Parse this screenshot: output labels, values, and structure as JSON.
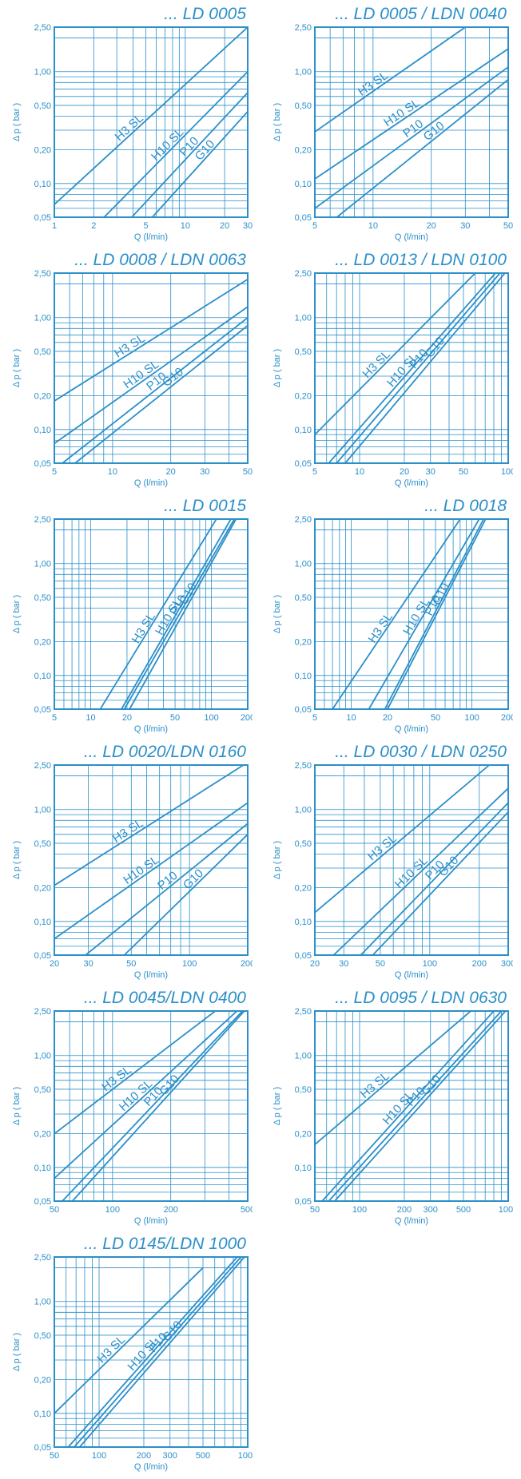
{
  "theme": {
    "color": "#2b8fc9"
  },
  "chart_data": [
    {
      "type": "line",
      "title": "... LD 0005",
      "xlabel": "Q (l/min)",
      "ylabel": "Δ p ( bar )",
      "x_scale": "log",
      "y_scale": "log",
      "xlim": [
        1,
        30
      ],
      "ylim": [
        0.05,
        2.5
      ],
      "x_ticks": [
        "1",
        "2",
        "5",
        "10",
        "20",
        "30"
      ],
      "x_tick_values": [
        1,
        2,
        5,
        10,
        20,
        30
      ],
      "y_ticks": [
        "0,05",
        "0,10",
        "0,20",
        "0,50",
        "1,00",
        "2,50"
      ],
      "y_tick_values": [
        0.05,
        0.1,
        0.2,
        0.5,
        1.0,
        2.5
      ],
      "series": [
        {
          "name": "H3 SL",
          "x": [
            1,
            30
          ],
          "y": [
            0.065,
            2.5
          ]
        },
        {
          "name": "H10 SL",
          "x": [
            2.4,
            30
          ],
          "y": [
            0.05,
            1.0
          ]
        },
        {
          "name": "P10",
          "x": [
            3.9,
            30
          ],
          "y": [
            0.05,
            0.65
          ]
        },
        {
          "name": "G10",
          "x": [
            5.6,
            30
          ],
          "y": [
            0.05,
            0.44
          ]
        }
      ]
    },
    {
      "type": "line",
      "title": "... LD 0005 / LDN 0040",
      "xlabel": "Q (l/min)",
      "ylabel": "Δ p ( bar )",
      "x_scale": "log",
      "y_scale": "log",
      "xlim": [
        5,
        50
      ],
      "ylim": [
        0.05,
        2.5
      ],
      "x_ticks": [
        "5",
        "10",
        "20",
        "30",
        "50"
      ],
      "x_tick_values": [
        5,
        10,
        20,
        30,
        50
      ],
      "y_ticks": [
        "0,05",
        "0,10",
        "0,20",
        "0,50",
        "1,00",
        "2,50"
      ],
      "y_tick_values": [
        0.05,
        0.1,
        0.2,
        0.5,
        1.0,
        2.5
      ],
      "series": [
        {
          "name": "H3 SL",
          "x": [
            5,
            30
          ],
          "y": [
            0.29,
            2.5
          ]
        },
        {
          "name": "H10 SL",
          "x": [
            5,
            50
          ],
          "y": [
            0.11,
            1.6
          ]
        },
        {
          "name": "P10",
          "x": [
            5,
            50
          ],
          "y": [
            0.06,
            1.1
          ]
        },
        {
          "name": "G10",
          "x": [
            6.5,
            50
          ],
          "y": [
            0.05,
            0.85
          ]
        }
      ]
    },
    {
      "type": "line",
      "title": "... LD 0008 / LDN 0063",
      "xlabel": "Q (l/min)",
      "ylabel": "Δ p ( bar )",
      "x_scale": "log",
      "y_scale": "log",
      "xlim": [
        5,
        50
      ],
      "ylim": [
        0.05,
        2.5
      ],
      "x_ticks": [
        "5",
        "10",
        "20",
        "30",
        "50"
      ],
      "x_tick_values": [
        5,
        10,
        20,
        30,
        50
      ],
      "y_ticks": [
        "0,05",
        "0,10",
        "0,20",
        "0,50",
        "1,00",
        "2,50"
      ],
      "y_tick_values": [
        0.05,
        0.1,
        0.2,
        0.5,
        1.0,
        2.5
      ],
      "series": [
        {
          "name": "H3 SL",
          "x": [
            5,
            50
          ],
          "y": [
            0.18,
            2.2
          ]
        },
        {
          "name": "H10 SL",
          "x": [
            5,
            50
          ],
          "y": [
            0.075,
            1.25
          ]
        },
        {
          "name": "P10",
          "x": [
            5.5,
            50
          ],
          "y": [
            0.05,
            1.0
          ]
        },
        {
          "name": "G10",
          "x": [
            6.4,
            50
          ],
          "y": [
            0.05,
            0.85
          ]
        }
      ]
    },
    {
      "type": "line",
      "title": "... LD 0013 / LDN 0100",
      "xlabel": "Q (l/min)",
      "ylabel": "Δ p ( bar )",
      "x_scale": "log",
      "y_scale": "log",
      "xlim": [
        5,
        100
      ],
      "ylim": [
        0.05,
        2.5
      ],
      "x_ticks": [
        "5",
        "10",
        "20",
        "30",
        "50",
        "100"
      ],
      "x_tick_values": [
        5,
        10,
        20,
        30,
        50,
        100
      ],
      "y_ticks": [
        "0,05",
        "0,10",
        "0,20",
        "0,50",
        "1,00",
        "2,50"
      ],
      "y_tick_values": [
        0.05,
        0.1,
        0.2,
        0.5,
        1.0,
        2.5
      ],
      "series": [
        {
          "name": "H3 SL",
          "x": [
            5,
            60
          ],
          "y": [
            0.09,
            2.5
          ]
        },
        {
          "name": "H10 SL",
          "x": [
            6.2,
            82
          ],
          "y": [
            0.05,
            2.5
          ]
        },
        {
          "name": "P10",
          "x": [
            7,
            88
          ],
          "y": [
            0.05,
            2.5
          ]
        },
        {
          "name": "G10",
          "x": [
            8,
            95
          ],
          "y": [
            0.05,
            2.5
          ]
        }
      ]
    },
    {
      "type": "line",
      "title": "... LD 0015",
      "xlabel": "Q (l/min)",
      "ylabel": "Δ p ( bar )",
      "x_scale": "log",
      "y_scale": "log",
      "xlim": [
        5,
        200
      ],
      "ylim": [
        0.05,
        2.5
      ],
      "x_ticks": [
        "5",
        "10",
        "20",
        "50",
        "100",
        "200"
      ],
      "x_tick_values": [
        5,
        10,
        20,
        50,
        100,
        200
      ],
      "y_ticks": [
        "0,05",
        "0,10",
        "0,20",
        "0,50",
        "1,00",
        "2,50"
      ],
      "y_tick_values": [
        0.05,
        0.1,
        0.2,
        0.5,
        1.0,
        2.5
      ],
      "series": [
        {
          "name": "H3 SL",
          "x": [
            12,
            110
          ],
          "y": [
            0.05,
            2.5
          ]
        },
        {
          "name": "H10 SL",
          "x": [
            18,
            145
          ],
          "y": [
            0.05,
            2.5
          ]
        },
        {
          "name": "P10",
          "x": [
            19,
            155
          ],
          "y": [
            0.05,
            2.5
          ]
        },
        {
          "name": "G10",
          "x": [
            21,
            160
          ],
          "y": [
            0.05,
            2.5
          ]
        }
      ]
    },
    {
      "type": "line",
      "title": "... LD 0018",
      "xlabel": "Q (l/min)",
      "ylabel": "Δ p ( bar )",
      "x_scale": "log",
      "y_scale": "log",
      "xlim": [
        5,
        200
      ],
      "ylim": [
        0.05,
        2.5
      ],
      "x_ticks": [
        "5",
        "10",
        "20",
        "50",
        "100",
        "200"
      ],
      "x_tick_values": [
        5,
        10,
        20,
        50,
        100,
        200
      ],
      "y_ticks": [
        "0,05",
        "0,10",
        "0,20",
        "0,50",
        "1,00",
        "2,50"
      ],
      "y_tick_values": [
        0.05,
        0.1,
        0.2,
        0.5,
        1.0,
        2.5
      ],
      "series": [
        {
          "name": "H3 SL",
          "x": [
            7,
            80
          ],
          "y": [
            0.05,
            2.5
          ]
        },
        {
          "name": "H10 SL",
          "x": [
            14,
            115
          ],
          "y": [
            0.05,
            2.5
          ]
        },
        {
          "name": "P10",
          "x": [
            19,
            125
          ],
          "y": [
            0.05,
            2.5
          ]
        },
        {
          "name": "G10",
          "x": [
            20,
            130
          ],
          "y": [
            0.05,
            2.5
          ]
        }
      ]
    },
    {
      "type": "line",
      "title": "... LD 0020/LDN 0160",
      "xlabel": "Q (l/min)",
      "ylabel": "Δ p ( bar )",
      "x_scale": "log",
      "y_scale": "log",
      "xlim": [
        20,
        200
      ],
      "ylim": [
        0.05,
        2.5
      ],
      "x_ticks": [
        "20",
        "30",
        "50",
        "100",
        "200"
      ],
      "x_tick_values": [
        20,
        30,
        50,
        100,
        200
      ],
      "y_ticks": [
        "0,05",
        "0,10",
        "0,20",
        "0,50",
        "1,00",
        "2,50"
      ],
      "y_tick_values": [
        0.05,
        0.1,
        0.2,
        0.5,
        1.0,
        2.5
      ],
      "series": [
        {
          "name": "H3 SL",
          "x": [
            20,
            190
          ],
          "y": [
            0.21,
            2.5
          ]
        },
        {
          "name": "H10 SL",
          "x": [
            20,
            200
          ],
          "y": [
            0.07,
            1.15
          ]
        },
        {
          "name": "P10",
          "x": [
            29,
            200
          ],
          "y": [
            0.05,
            0.75
          ]
        },
        {
          "name": "G10",
          "x": [
            46,
            200
          ],
          "y": [
            0.05,
            0.6
          ]
        }
      ]
    },
    {
      "type": "line",
      "title": "... LD 0030 / LDN 0250",
      "xlabel": "Q (l/min)",
      "ylabel": "Δ p ( bar )",
      "x_scale": "log",
      "y_scale": "log",
      "xlim": [
        20,
        300
      ],
      "ylim": [
        0.05,
        2.5
      ],
      "x_ticks": [
        "20",
        "30",
        "50",
        "100",
        "200",
        "300"
      ],
      "x_tick_values": [
        20,
        30,
        50,
        100,
        200,
        300
      ],
      "y_ticks": [
        "0,05",
        "0,10",
        "0,20",
        "0,50",
        "1,00",
        "2,50"
      ],
      "y_tick_values": [
        0.05,
        0.1,
        0.2,
        0.5,
        1.0,
        2.5
      ],
      "series": [
        {
          "name": "H3 SL",
          "x": [
            20,
            230
          ],
          "y": [
            0.12,
            2.5
          ]
        },
        {
          "name": "H10 SL",
          "x": [
            26,
            300
          ],
          "y": [
            0.05,
            1.55
          ]
        },
        {
          "name": "P10",
          "x": [
            38,
            300
          ],
          "y": [
            0.05,
            1.15
          ]
        },
        {
          "name": "G10",
          "x": [
            45,
            300
          ],
          "y": [
            0.05,
            0.95
          ]
        }
      ]
    },
    {
      "type": "line",
      "title": "... LD 0045/LDN 0400",
      "xlabel": "Q (l/min)",
      "ylabel": "Δ p ( bar )",
      "x_scale": "log",
      "y_scale": "log",
      "xlim": [
        50,
        500
      ],
      "ylim": [
        0.05,
        2.5
      ],
      "x_ticks": [
        "50",
        "100",
        "200",
        "500"
      ],
      "x_tick_values": [
        50,
        100,
        200,
        500
      ],
      "y_ticks": [
        "0,05",
        "0,10",
        "0,20",
        "0,50",
        "1,00",
        "2,50"
      ],
      "y_tick_values": [
        0.05,
        0.1,
        0.2,
        0.5,
        1.0,
        2.5
      ],
      "series": [
        {
          "name": "H3 SL",
          "x": [
            50,
            340
          ],
          "y": [
            0.2,
            2.5
          ]
        },
        {
          "name": "H10 SL",
          "x": [
            50,
            440
          ],
          "y": [
            0.08,
            2.5
          ]
        },
        {
          "name": "P10",
          "x": [
            55,
            470
          ],
          "y": [
            0.05,
            2.5
          ]
        },
        {
          "name": "G10",
          "x": [
            62,
            480
          ],
          "y": [
            0.05,
            2.5
          ]
        }
      ]
    },
    {
      "type": "line",
      "title": "... LD 0095 / LDN 0630",
      "xlabel": "Q (l/min)",
      "ylabel": "Δ p ( bar )",
      "x_scale": "log",
      "y_scale": "log",
      "xlim": [
        50,
        1000
      ],
      "ylim": [
        0.05,
        2.5
      ],
      "x_ticks": [
        "50",
        "100",
        "200",
        "300",
        "500",
        "1000"
      ],
      "x_tick_values": [
        50,
        100,
        200,
        300,
        500,
        1000
      ],
      "y_ticks": [
        "0,05",
        "0,10",
        "0,20",
        "0,50",
        "1,00",
        "2,50"
      ],
      "y_tick_values": [
        0.05,
        0.1,
        0.2,
        0.5,
        1.0,
        2.5
      ],
      "series": [
        {
          "name": "H3 SL",
          "x": [
            50,
            560
          ],
          "y": [
            0.16,
            2.5
          ]
        },
        {
          "name": "H10 SL",
          "x": [
            56,
            800
          ],
          "y": [
            0.05,
            2.5
          ]
        },
        {
          "name": "P10",
          "x": [
            62,
            900
          ],
          "y": [
            0.05,
            2.5
          ]
        },
        {
          "name": "G10",
          "x": [
            68,
            960
          ],
          "y": [
            0.05,
            2.5
          ]
        }
      ]
    },
    {
      "type": "line",
      "title": "... LD 0145/LDN 1000",
      "xlabel": "Q (l/min)",
      "ylabel": "Δ p ( bar )",
      "x_scale": "log",
      "y_scale": "log",
      "xlim": [
        50,
        1000
      ],
      "ylim": [
        0.05,
        2.5
      ],
      "x_ticks": [
        "50",
        "100",
        "200",
        "300",
        "500",
        "1000"
      ],
      "x_tick_values": [
        50,
        100,
        200,
        300,
        500,
        1000
      ],
      "y_ticks": [
        "0,05",
        "0,10",
        "0,20",
        "0,50",
        "1,00",
        "2,50"
      ],
      "y_tick_values": [
        0.05,
        0.1,
        0.2,
        0.5,
        1.0,
        2.5
      ],
      "series": [
        {
          "name": "H3 SL",
          "x": [
            50,
            500
          ],
          "y": [
            0.1,
            2.0
          ]
        },
        {
          "name": "H10 SL",
          "x": [
            62,
            850
          ],
          "y": [
            0.05,
            2.5
          ]
        },
        {
          "name": "P10",
          "x": [
            68,
            900
          ],
          "y": [
            0.05,
            2.5
          ]
        },
        {
          "name": "G10",
          "x": [
            74,
            950
          ],
          "y": [
            0.05,
            2.5
          ]
        }
      ]
    }
  ]
}
